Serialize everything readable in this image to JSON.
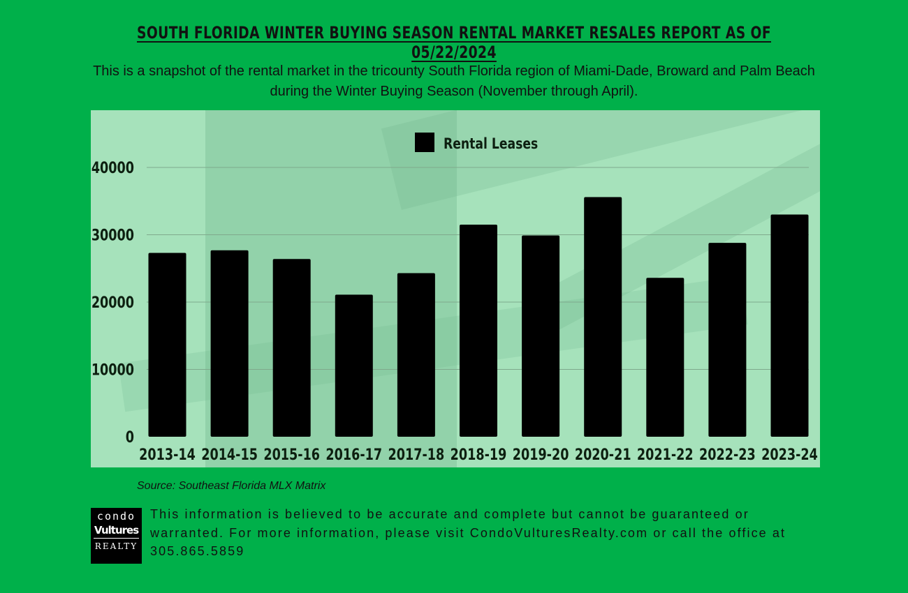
{
  "header": {
    "title": "SOUTH FLORIDA WINTER BUYING SEASON RENTAL MARKET RESALES REPORT AS OF 05/22/2024",
    "subtitle": "This is a snapshot of the rental market in the tricounty South Florida region of Miami-Dade, Broward and Palm Beach during the Winter Buying Season (November through April)."
  },
  "chart_data": {
    "type": "bar",
    "title": "",
    "xlabel": "",
    "ylabel": "",
    "categories": [
      "2013-14",
      "2014-15",
      "2015-16",
      "2016-17",
      "2017-18",
      "2018-19",
      "2019-20",
      "2020-21",
      "2021-22",
      "2022-23",
      "2023-24"
    ],
    "series": [
      {
        "name": "Rental Leases",
        "values": [
          27300,
          27700,
          26400,
          21100,
          24300,
          31500,
          29900,
          35600,
          23600,
          28800,
          33000
        ]
      }
    ],
    "yticks": [
      0,
      10000,
      20000,
      30000,
      40000
    ],
    "ylim": [
      0,
      40000
    ],
    "grid": true,
    "legend_position": "top-center",
    "colors": {
      "bar": "#000000",
      "grid": "#7fa98c",
      "text": "#0d1f10"
    }
  },
  "footer": {
    "source": "Source: Southeast Florida MLX Matrix",
    "logo": {
      "line1": "condo",
      "line2": "Vultures",
      "line3": "REALTY"
    },
    "disclaimer": "This information is believed to be accurate and complete but cannot be guaranteed or warranted. For more information, please visit CondoVulturesRealty.com or call the office at 305.865.5859"
  },
  "colors": {
    "background": "#00b04a",
    "panel": "#a6e2bb"
  }
}
